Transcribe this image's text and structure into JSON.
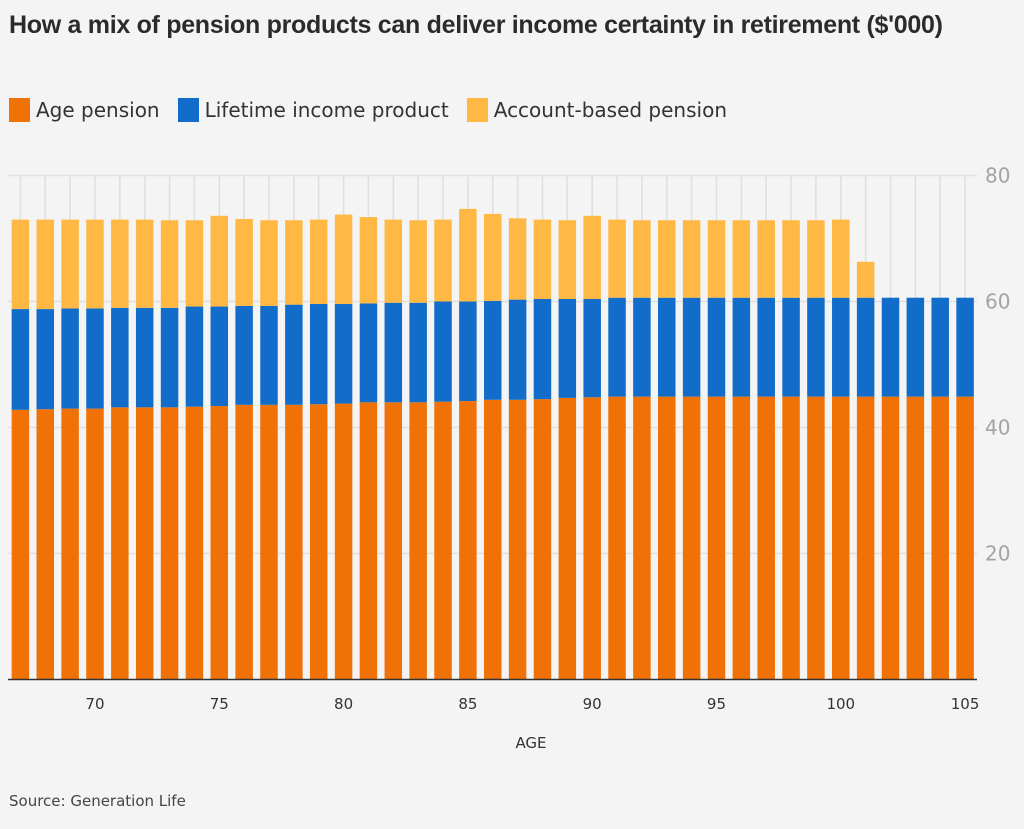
{
  "title": "How a mix of pension products can deliver income certainty in retirement ($'000)",
  "source": "Source: Generation Life",
  "colors": {
    "age_pension": "#F07106",
    "lifetime_income": "#116DC9",
    "account_based": "#FFB843",
    "background": "#f4f4f4",
    "grid": "#e0e0e0",
    "axis": "#333333"
  },
  "legend": [
    {
      "label": "Age pension",
      "color": "#F07106"
    },
    {
      "label": "Lifetime income product",
      "color": "#116DC9"
    },
    {
      "label": "Account-based pension",
      "color": "#FFB843"
    }
  ],
  "chart_data": {
    "type": "bar",
    "stacked": true,
    "title": "How a mix of pension products can deliver income certainty in retirement ($'000)",
    "xlabel": "AGE",
    "ylabel": "",
    "ylim": [
      0,
      80
    ],
    "y_ticks": [
      20,
      40,
      60,
      80
    ],
    "y_tick_labels": [
      "20",
      "40",
      "60",
      "80"
    ],
    "y_axis_position": "right",
    "x_ticks": [
      70,
      75,
      80,
      85,
      90,
      95,
      100,
      105
    ],
    "x_tick_labels": [
      "70",
      "75",
      "80",
      "85",
      "90",
      "95",
      "100",
      "105"
    ],
    "grid": true,
    "legend_position": "top-left",
    "categories": [
      67,
      68,
      69,
      70,
      71,
      72,
      73,
      74,
      75,
      76,
      77,
      78,
      79,
      80,
      81,
      82,
      83,
      84,
      85,
      86,
      87,
      88,
      89,
      90,
      91,
      92,
      93,
      94,
      95,
      96,
      97,
      98,
      99,
      100,
      101,
      102,
      103,
      104,
      105
    ],
    "series": [
      {
        "name": "Age pension",
        "values": [
          42.8,
          42.9,
          43.0,
          43.0,
          43.2,
          43.2,
          43.2,
          43.3,
          43.4,
          43.6,
          43.6,
          43.6,
          43.7,
          43.8,
          44.0,
          44.0,
          44.0,
          44.1,
          44.2,
          44.4,
          44.4,
          44.5,
          44.7,
          44.8,
          44.9,
          44.9,
          44.9,
          44.9,
          44.9,
          44.9,
          44.9,
          44.9,
          44.9,
          44.9,
          44.9,
          44.9,
          44.9,
          44.9,
          44.9
        ]
      },
      {
        "name": "Lifetime income product",
        "values": [
          16.0,
          15.9,
          15.9,
          15.9,
          15.8,
          15.8,
          15.8,
          15.9,
          15.8,
          15.7,
          15.7,
          15.9,
          15.9,
          15.8,
          15.7,
          15.8,
          15.8,
          15.9,
          15.8,
          15.7,
          15.9,
          15.9,
          15.7,
          15.6,
          15.7,
          15.7,
          15.7,
          15.7,
          15.7,
          15.7,
          15.7,
          15.7,
          15.7,
          15.7,
          15.7,
          15.7,
          15.7,
          15.7,
          15.7
        ]
      },
      {
        "name": "Account-based pension",
        "values": [
          14.2,
          14.2,
          14.1,
          14.1,
          14.0,
          14.0,
          13.9,
          13.7,
          14.4,
          13.8,
          13.6,
          13.4,
          13.4,
          14.2,
          13.7,
          13.2,
          13.1,
          13.0,
          14.7,
          13.8,
          12.9,
          12.6,
          12.5,
          13.2,
          12.4,
          12.3,
          12.3,
          12.3,
          12.3,
          12.3,
          12.3,
          12.3,
          12.3,
          12.4,
          5.7,
          0,
          0,
          0,
          0
        ]
      }
    ]
  }
}
